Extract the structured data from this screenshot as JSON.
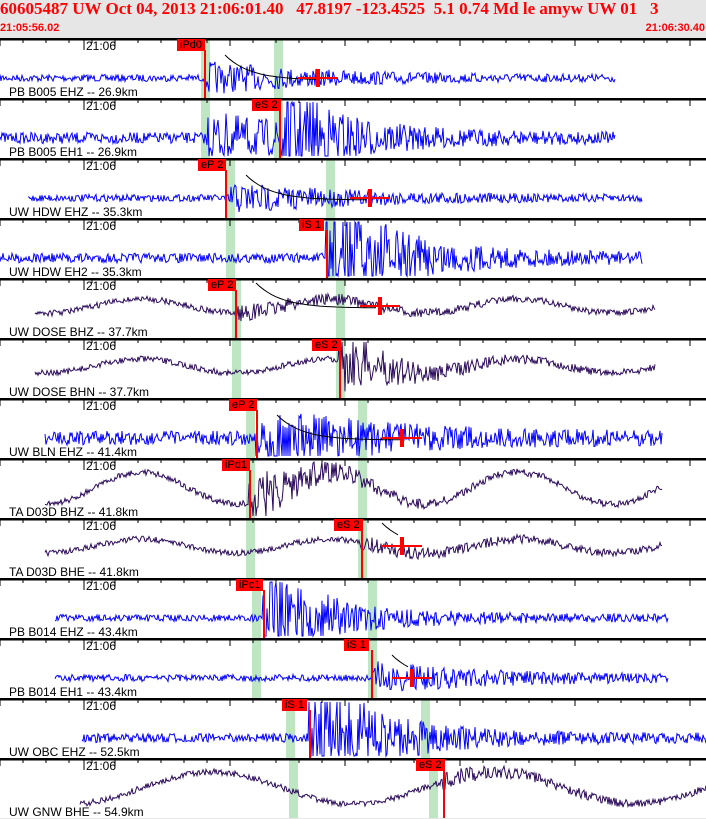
{
  "header": {
    "title": "60605487 UW Oct 04, 2013 21:06:01.40   47.8197 -123.4525  5.1 0.74 Md le amyw UW 01   3",
    "start_time": "21:05:56.02",
    "end_time": "21:06:30.40"
  },
  "time_tick_label": "21:06",
  "colors": {
    "short_period": "#0000ff",
    "broadband": "#2b0b5c",
    "pick": "#ff0000",
    "window": "#bfe6c2"
  },
  "traces": [
    {
      "label": "PB B005 EHZ -- 26.9km",
      "pick": "iPd0"
    },
    {
      "label": "PB B005 EH1 -- 26.9km",
      "pick": "eS 2"
    },
    {
      "label": "UW HDW EHZ -- 35.3km",
      "pick": "eP 2"
    },
    {
      "label": "UW HDW EH2 -- 35.3km",
      "pick": "iS 1"
    },
    {
      "label": "UW DOSE BHZ -- 37.7km",
      "pick": "eP 2"
    },
    {
      "label": "UW DOSE BHN -- 37.7km",
      "pick": "eS 2"
    },
    {
      "label": "UW BLN EHZ -- 41.4km",
      "pick": "eP 2"
    },
    {
      "label": "TA D03D BHZ -- 41.8km",
      "pick": "iPd1"
    },
    {
      "label": "TA D03D BHE -- 41.8km",
      "pick": "eS 2"
    },
    {
      "label": "PB B014 EHZ -- 43.4km",
      "pick": "iPc1"
    },
    {
      "label": "PB B014 EH1 -- 43.4km",
      "pick": "iS 1"
    },
    {
      "label": "UW OBC EHZ -- 52.5km",
      "pick": "iS 1"
    },
    {
      "label": "UW GNW BHE -- 54.9km",
      "pick": "eS 2"
    }
  ]
}
